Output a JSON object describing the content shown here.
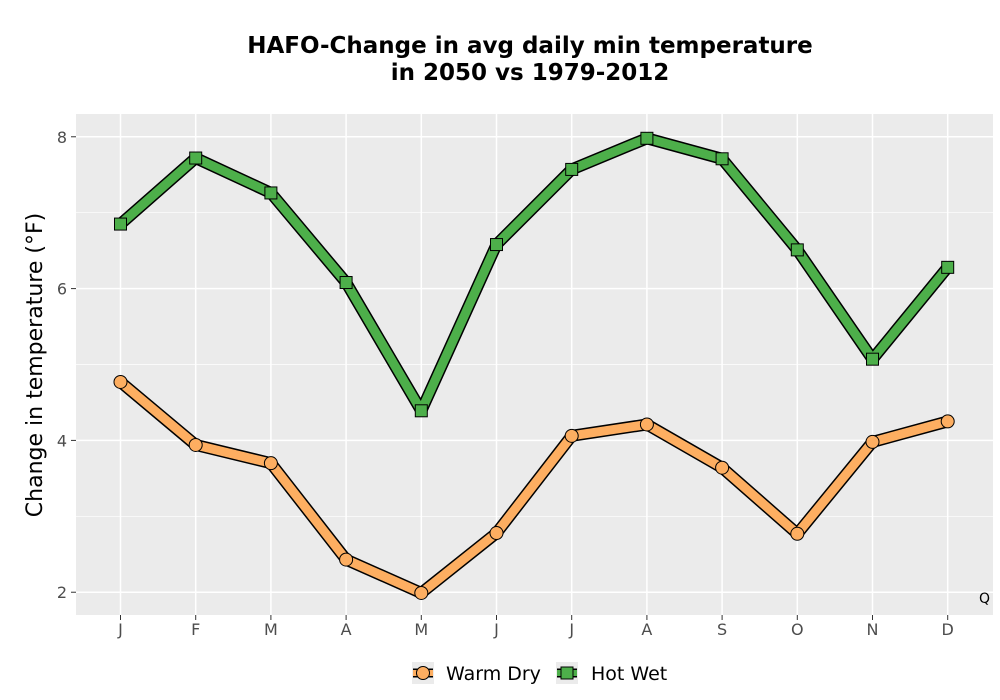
{
  "chart_data": {
    "type": "line",
    "title_lines": [
      "HAFO-Change in avg daily min temperature",
      "in 2050 vs 1979-2012"
    ],
    "xlabel": "",
    "ylabel": "Change in temperature (°F)",
    "categories": [
      "J",
      "F",
      "M",
      "A",
      "M",
      "J",
      "J",
      "A",
      "S",
      "O",
      "N",
      "D"
    ],
    "ylim": [
      1.7,
      8.3
    ],
    "y_ticks": [
      2,
      4,
      6,
      8
    ],
    "grid": true,
    "legend_position": "bottom",
    "corner_note": "Q",
    "series": [
      {
        "name": "Warm Dry",
        "marker": "circle",
        "color": "#fdae61",
        "values": [
          4.77,
          3.94,
          3.7,
          2.43,
          1.99,
          2.78,
          4.06,
          4.21,
          3.64,
          2.77,
          3.98,
          4.25
        ]
      },
      {
        "name": "Hot Wet",
        "marker": "square",
        "color": "#4daf4a",
        "values": [
          6.85,
          7.72,
          7.26,
          6.08,
          4.39,
          6.58,
          7.57,
          7.98,
          7.71,
          6.51,
          5.07,
          6.28
        ]
      }
    ],
    "colors": {
      "panel": "#ebebeb",
      "grid": "#ffffff",
      "outline": "#000000"
    }
  }
}
